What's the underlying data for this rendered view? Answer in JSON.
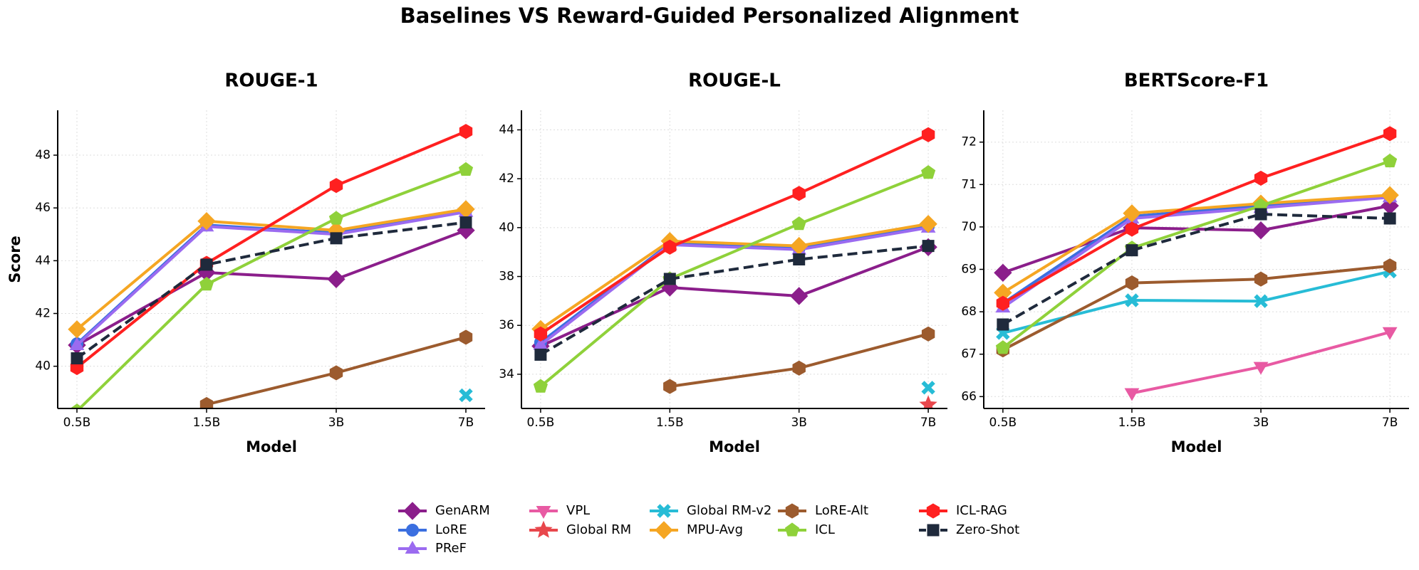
{
  "suptitle": "Baselines VS Reward-Guided Personalized Alignment",
  "legend_loc": "lower center",
  "legend_ncol": 5,
  "chart_data": [
    {
      "type": "line",
      "title": "ROUGE-1",
      "xlabel": "Model",
      "ylabel": "Score",
      "grid": true,
      "categories": [
        "0.5B",
        "1.5B",
        "3B",
        "7B"
      ],
      "ylim": [
        38.4,
        49.7
      ],
      "yticks": [
        40,
        42,
        44,
        46,
        48
      ],
      "series": [
        {
          "name": "GenARM",
          "color": "#8b1e8b",
          "marker": "diamond",
          "dash": false,
          "values": [
            40.8,
            43.55,
            43.3,
            45.15
          ]
        },
        {
          "name": "LoRE",
          "color": "#3b6fe0",
          "marker": "circle",
          "dash": false,
          "values": [
            40.85,
            45.35,
            45.05,
            45.9
          ]
        },
        {
          "name": "PReF",
          "color": "#9b6bf0",
          "marker": "triangle-up",
          "dash": false,
          "values": [
            40.8,
            45.3,
            45.0,
            45.85
          ]
        },
        {
          "name": "VPL",
          "color": "#e85aa3",
          "marker": "triangle-down",
          "dash": false,
          "values": [
            null,
            null,
            null,
            null
          ]
        },
        {
          "name": "Global RM",
          "color": "#e8474c",
          "marker": "star",
          "dash": false,
          "values": [
            null,
            null,
            null,
            null
          ]
        },
        {
          "name": "Global RM-v2",
          "color": "#27bcd6",
          "marker": "x",
          "dash": false,
          "values": [
            null,
            null,
            null,
            38.9
          ]
        },
        {
          "name": "MPU-Avg",
          "color": "#f5a623",
          "marker": "diamond",
          "dash": false,
          "values": [
            41.4,
            45.5,
            45.15,
            45.95
          ]
        },
        {
          "name": "LoRE-Alt",
          "color": "#9c5b2e",
          "marker": "hexagon",
          "dash": false,
          "values": [
            null,
            38.55,
            39.75,
            41.1
          ]
        },
        {
          "name": "ICL",
          "color": "#8fd13a",
          "marker": "pentagon",
          "dash": false,
          "values": [
            38.3,
            43.1,
            45.6,
            47.45
          ]
        },
        {
          "name": "ICL-RAG",
          "color": "#ff2020",
          "marker": "hexagon",
          "dash": false,
          "values": [
            39.95,
            43.9,
            46.85,
            48.9
          ]
        },
        {
          "name": "Zero-Shot",
          "color": "#1f2a3c",
          "marker": "square",
          "dash": true,
          "values": [
            40.3,
            43.85,
            44.85,
            45.45
          ]
        }
      ]
    },
    {
      "type": "line",
      "title": "ROUGE-L",
      "xlabel": "Model",
      "grid": true,
      "categories": [
        "0.5B",
        "1.5B",
        "3B",
        "7B"
      ],
      "ylim": [
        32.6,
        44.8
      ],
      "yticks": [
        34,
        36,
        38,
        40,
        42,
        44
      ],
      "series": [
        {
          "name": "GenARM",
          "color": "#8b1e8b",
          "marker": "diamond",
          "dash": false,
          "values": [
            35.15,
            37.55,
            37.2,
            39.2
          ]
        },
        {
          "name": "LoRE",
          "color": "#3b6fe0",
          "marker": "circle",
          "dash": false,
          "values": [
            35.3,
            39.35,
            39.15,
            40.05
          ]
        },
        {
          "name": "PReF",
          "color": "#9b6bf0",
          "marker": "triangle-up",
          "dash": false,
          "values": [
            35.2,
            39.3,
            39.1,
            40.0
          ]
        },
        {
          "name": "VPL",
          "color": "#e85aa3",
          "marker": "triangle-down",
          "dash": false,
          "values": [
            null,
            null,
            null,
            null
          ]
        },
        {
          "name": "Global RM",
          "color": "#e8474c",
          "marker": "star",
          "dash": false,
          "values": [
            null,
            null,
            null,
            32.75
          ]
        },
        {
          "name": "Global RM-v2",
          "color": "#27bcd6",
          "marker": "x",
          "dash": false,
          "values": [
            null,
            null,
            null,
            33.45
          ]
        },
        {
          "name": "MPU-Avg",
          "color": "#f5a623",
          "marker": "diamond",
          "dash": false,
          "values": [
            35.85,
            39.45,
            39.25,
            40.15
          ]
        },
        {
          "name": "LoRE-Alt",
          "color": "#9c5b2e",
          "marker": "hexagon",
          "dash": false,
          "values": [
            null,
            33.5,
            34.25,
            35.65
          ]
        },
        {
          "name": "ICL",
          "color": "#8fd13a",
          "marker": "pentagon",
          "dash": false,
          "values": [
            33.5,
            37.9,
            40.15,
            42.25
          ]
        },
        {
          "name": "ICL-RAG",
          "color": "#ff2020",
          "marker": "hexagon",
          "dash": false,
          "values": [
            35.65,
            39.2,
            41.4,
            43.8
          ]
        },
        {
          "name": "Zero-Shot",
          "color": "#1f2a3c",
          "marker": "square",
          "dash": true,
          "values": [
            34.8,
            37.9,
            38.7,
            39.25
          ]
        }
      ]
    },
    {
      "type": "line",
      "title": "BERTScore-F1",
      "xlabel": "Model",
      "grid": true,
      "categories": [
        "0.5B",
        "1.5B",
        "3B",
        "7B"
      ],
      "ylim": [
        65.72,
        72.75
      ],
      "yticks": [
        66,
        67,
        68,
        69,
        70,
        71,
        72
      ],
      "series": [
        {
          "name": "GenARM",
          "color": "#8b1e8b",
          "marker": "diamond",
          "dash": false,
          "values": [
            68.92,
            69.98,
            69.92,
            70.5
          ]
        },
        {
          "name": "LoRE",
          "color": "#3b6fe0",
          "marker": "circle",
          "dash": false,
          "values": [
            68.2,
            70.25,
            70.5,
            70.72
          ]
        },
        {
          "name": "PReF",
          "color": "#9b6bf0",
          "marker": "triangle-up",
          "dash": false,
          "values": [
            68.1,
            70.2,
            70.45,
            70.7
          ]
        },
        {
          "name": "VPL",
          "color": "#e85aa3",
          "marker": "triangle-down",
          "dash": false,
          "values": [
            null,
            66.08,
            66.7,
            67.52
          ]
        },
        {
          "name": "Global RM",
          "color": "#e8474c",
          "marker": "star",
          "dash": false,
          "values": [
            null,
            null,
            null,
            null
          ]
        },
        {
          "name": "Global RM-v2",
          "color": "#27bcd6",
          "marker": "x",
          "dash": false,
          "values": [
            67.5,
            68.27,
            68.25,
            68.95
          ]
        },
        {
          "name": "MPU-Avg",
          "color": "#f5a623",
          "marker": "diamond",
          "dash": false,
          "values": [
            68.45,
            70.32,
            70.55,
            70.75
          ]
        },
        {
          "name": "LoRE-Alt",
          "color": "#9c5b2e",
          "marker": "hexagon",
          "dash": false,
          "values": [
            67.1,
            68.68,
            68.77,
            69.08
          ]
        },
        {
          "name": "ICL",
          "color": "#8fd13a",
          "marker": "pentagon",
          "dash": false,
          "values": [
            67.15,
            69.5,
            70.5,
            71.55
          ]
        },
        {
          "name": "ICL-RAG",
          "color": "#ff2020",
          "marker": "hexagon",
          "dash": false,
          "values": [
            68.2,
            69.95,
            71.15,
            72.2
          ]
        },
        {
          "name": "Zero-Shot",
          "color": "#1f2a3c",
          "marker": "square",
          "dash": true,
          "values": [
            67.7,
            69.45,
            70.3,
            70.2
          ]
        }
      ]
    }
  ]
}
